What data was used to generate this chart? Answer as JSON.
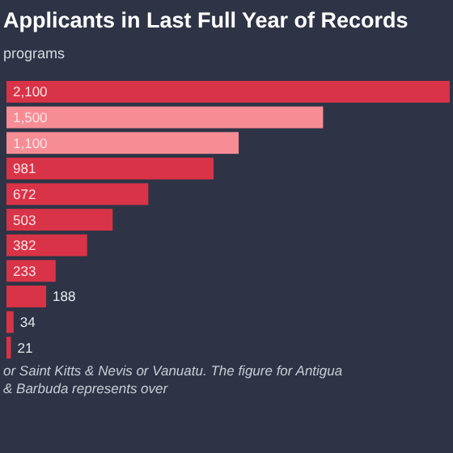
{
  "chart_data": {
    "type": "bar",
    "orientation": "horizontal",
    "title": "Applicants in Last Full Year of Records",
    "subtitle": "programs",
    "categories": [
      null,
      null,
      null,
      null,
      null,
      null,
      null,
      null,
      null,
      null,
      null
    ],
    "values": [
      2100,
      1500,
      1100,
      981,
      672,
      503,
      382,
      233,
      188,
      34,
      21
    ],
    "value_labels": [
      "2,100",
      "1,500",
      "1,100",
      "981",
      "672",
      "503",
      "382",
      "233",
      "188",
      "34",
      "21"
    ],
    "colors": [
      "#d93347",
      "#f68d95",
      "#f68d95",
      "#d93347",
      "#d93347",
      "#d93347",
      "#d93347",
      "#d93347",
      "#d93347",
      "#d93347",
      "#d93347"
    ],
    "annotations": [
      "or Saint Kitts & Nevis or Vanuatu. The figure for Antigua & Barbuda represents over"
    ]
  }
}
